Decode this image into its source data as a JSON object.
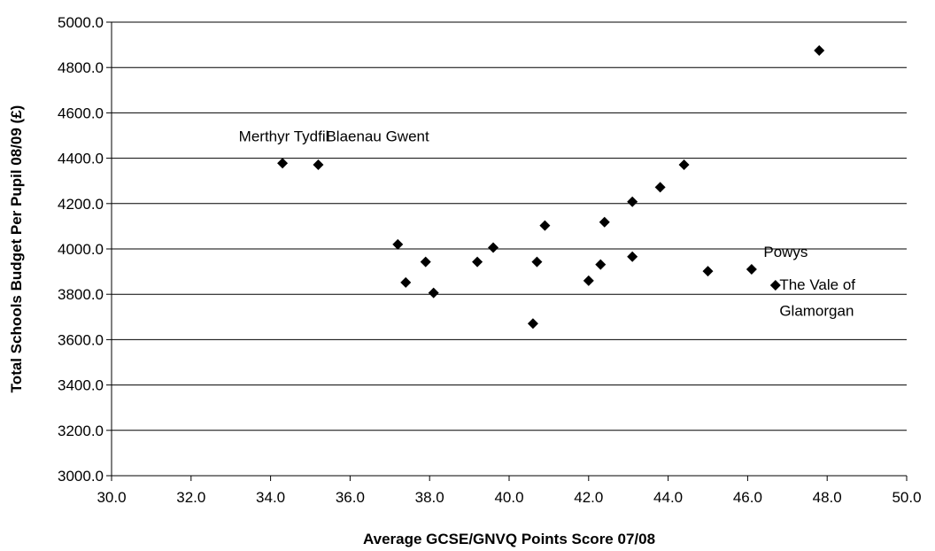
{
  "chart_data": {
    "type": "scatter",
    "title": "",
    "xlabel": "Average  GCSE/GNVQ Points Score 07/08",
    "ylabel": "Total Schools Budget Per Pupil 08/09 (£)",
    "xlim": [
      30.0,
      50.0
    ],
    "ylim": [
      3000.0,
      5000.0
    ],
    "x_ticks": [
      "30.0",
      "32.0",
      "34.0",
      "36.0",
      "38.0",
      "40.0",
      "42.0",
      "44.0",
      "46.0",
      "48.0",
      "50.0"
    ],
    "y_ticks": [
      "3000.0",
      "3200.0",
      "3400.0",
      "3600.0",
      "3800.0",
      "4000.0",
      "4200.0",
      "4400.0",
      "4600.0",
      "4800.0",
      "5000.0"
    ],
    "grid": "horizontal",
    "marker": "diamond",
    "marker_color": "#000000",
    "points": [
      {
        "x": 34.3,
        "y": 4378
      },
      {
        "x": 35.2,
        "y": 4371
      },
      {
        "x": 37.2,
        "y": 4020
      },
      {
        "x": 37.4,
        "y": 3852
      },
      {
        "x": 37.9,
        "y": 3943
      },
      {
        "x": 38.1,
        "y": 3806
      },
      {
        "x": 39.2,
        "y": 3943
      },
      {
        "x": 39.6,
        "y": 4006
      },
      {
        "x": 40.6,
        "y": 3671
      },
      {
        "x": 40.7,
        "y": 3943
      },
      {
        "x": 40.9,
        "y": 4103
      },
      {
        "x": 42.0,
        "y": 3860
      },
      {
        "x": 42.3,
        "y": 3931
      },
      {
        "x": 42.4,
        "y": 4118
      },
      {
        "x": 43.1,
        "y": 3966
      },
      {
        "x": 43.1,
        "y": 4208
      },
      {
        "x": 43.8,
        "y": 4272
      },
      {
        "x": 44.4,
        "y": 4371
      },
      {
        "x": 45.0,
        "y": 3902
      },
      {
        "x": 46.1,
        "y": 3910
      },
      {
        "x": 46.7,
        "y": 3840
      },
      {
        "x": 47.8,
        "y": 4875
      }
    ],
    "annotations": [
      {
        "text": "Merthyr Tydfil",
        "x": 33.2,
        "y": 4475
      },
      {
        "text": "Blaenau Gwent",
        "x": 35.4,
        "y": 4475
      },
      {
        "text": "Powys",
        "x": 46.4,
        "y": 3965
      },
      {
        "text": "The Vale of",
        "x": 46.8,
        "y": 3820
      },
      {
        "text": "Glamorgan",
        "x": 46.8,
        "y": 3705
      }
    ]
  }
}
